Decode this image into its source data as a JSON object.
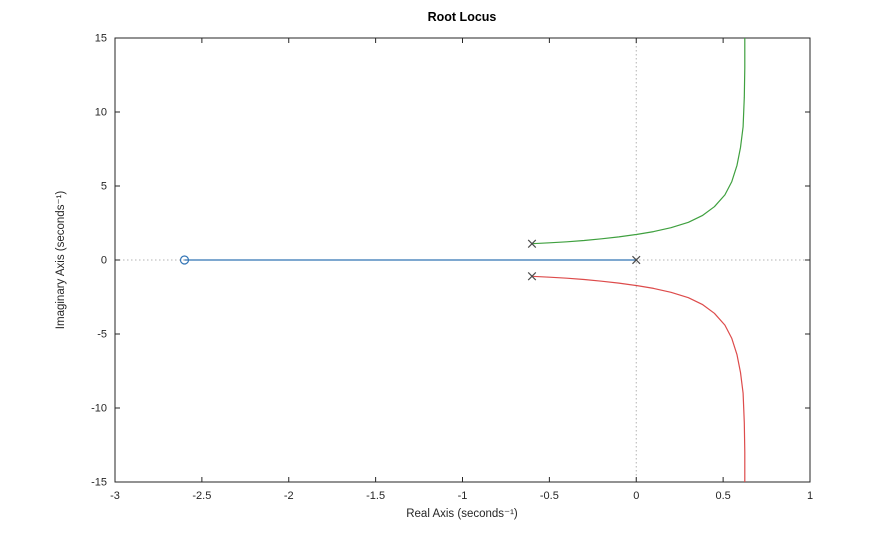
{
  "figure": {
    "background": "#ffffff"
  },
  "chart_data": {
    "type": "line",
    "title": "Root Locus",
    "xlabel": "Real Axis (seconds⁻¹)",
    "ylabel": "Imaginary Axis (seconds⁻¹)",
    "xlim": [
      -3,
      1
    ],
    "ylim": [
      -15,
      15
    ],
    "xticks": [
      -3,
      -2.5,
      -2,
      -1.5,
      -1,
      -0.5,
      0,
      0.5,
      1
    ],
    "yticks": [
      -15,
      -10,
      -5,
      0,
      5,
      10,
      15
    ],
    "grid": false,
    "legend": "none",
    "axis_color": "#262626",
    "tick_label_color": "#262626",
    "reference_lines": {
      "x": 0,
      "y": 0,
      "style": "dotted",
      "color": "#b3b3b3"
    },
    "marker_color": "#4d4d4d",
    "zero_marker_color": "#3274b5",
    "series": [
      {
        "name": "real-axis",
        "color": "#3274b5",
        "points": [
          [
            -2.6,
            0
          ],
          [
            0,
            0
          ]
        ]
      },
      {
        "name": "upper-complex",
        "color": "#3fa03f",
        "points": [
          [
            -0.6,
            1.1
          ],
          [
            -0.5,
            1.16
          ],
          [
            -0.4,
            1.23
          ],
          [
            -0.3,
            1.32
          ],
          [
            -0.2,
            1.43
          ],
          [
            -0.1,
            1.56
          ],
          [
            0,
            1.72
          ],
          [
            0.1,
            1.92
          ],
          [
            0.2,
            2.18
          ],
          [
            0.3,
            2.55
          ],
          [
            0.38,
            3.0
          ],
          [
            0.45,
            3.6
          ],
          [
            0.51,
            4.4
          ],
          [
            0.55,
            5.3
          ],
          [
            0.58,
            6.4
          ],
          [
            0.6,
            7.6
          ],
          [
            0.615,
            9.0
          ],
          [
            0.622,
            11.0
          ],
          [
            0.625,
            13.0
          ],
          [
            0.625,
            15
          ]
        ]
      },
      {
        "name": "lower-complex",
        "color": "#dd4b4b",
        "points": [
          [
            -0.6,
            -1.1
          ],
          [
            -0.5,
            -1.16
          ],
          [
            -0.4,
            -1.23
          ],
          [
            -0.3,
            -1.32
          ],
          [
            -0.2,
            -1.43
          ],
          [
            -0.1,
            -1.56
          ],
          [
            0,
            -1.72
          ],
          [
            0.1,
            -1.92
          ],
          [
            0.2,
            -2.18
          ],
          [
            0.3,
            -2.55
          ],
          [
            0.38,
            -3.0
          ],
          [
            0.45,
            -3.6
          ],
          [
            0.51,
            -4.4
          ],
          [
            0.55,
            -5.3
          ],
          [
            0.58,
            -6.4
          ],
          [
            0.6,
            -7.6
          ],
          [
            0.615,
            -9.0
          ],
          [
            0.622,
            -11.0
          ],
          [
            0.625,
            -13.0
          ],
          [
            0.625,
            -15
          ]
        ]
      }
    ],
    "poles": [
      {
        "x": -0.6,
        "y": 1.1
      },
      {
        "x": -0.6,
        "y": -1.1
      },
      {
        "x": 0,
        "y": 0
      }
    ],
    "zeros": [
      {
        "x": -2.6,
        "y": 0
      }
    ]
  }
}
